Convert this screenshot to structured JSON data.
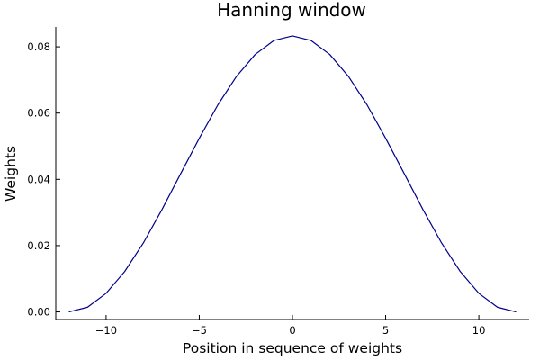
{
  "chart_data": {
    "type": "line",
    "title": "Hanning window",
    "xlabel": "Position in sequence of weights",
    "ylabel": "Weights",
    "xlim": [
      -12.7,
      12.7
    ],
    "ylim": [
      -0.0023,
      0.086
    ],
    "x_ticks": [
      -10,
      -5,
      0,
      5,
      10
    ],
    "x_tick_labels": [
      "−10",
      "−5",
      "0",
      "5",
      "10"
    ],
    "y_ticks": [
      0.0,
      0.02,
      0.04,
      0.06,
      0.08
    ],
    "y_tick_labels": [
      "0.00",
      "0.02",
      "0.04",
      "0.06",
      "0.08"
    ],
    "grid": false,
    "legend": "none",
    "series": [
      {
        "color": "#00008b",
        "x": [
          -12,
          -11,
          -10,
          -9,
          -8,
          -7,
          -6,
          -5,
          -4,
          -3,
          -2,
          -1,
          0,
          1,
          2,
          3,
          4,
          5,
          6,
          7,
          8,
          9,
          10,
          11,
          12
        ],
        "y": [
          0.0,
          0.0014,
          0.0056,
          0.0122,
          0.0208,
          0.0309,
          0.0417,
          0.0524,
          0.0625,
          0.0711,
          0.0777,
          0.0819,
          0.0833,
          0.0819,
          0.0777,
          0.0711,
          0.0625,
          0.0524,
          0.0417,
          0.0309,
          0.0208,
          0.0122,
          0.0056,
          0.0014,
          0.0
        ]
      }
    ]
  }
}
